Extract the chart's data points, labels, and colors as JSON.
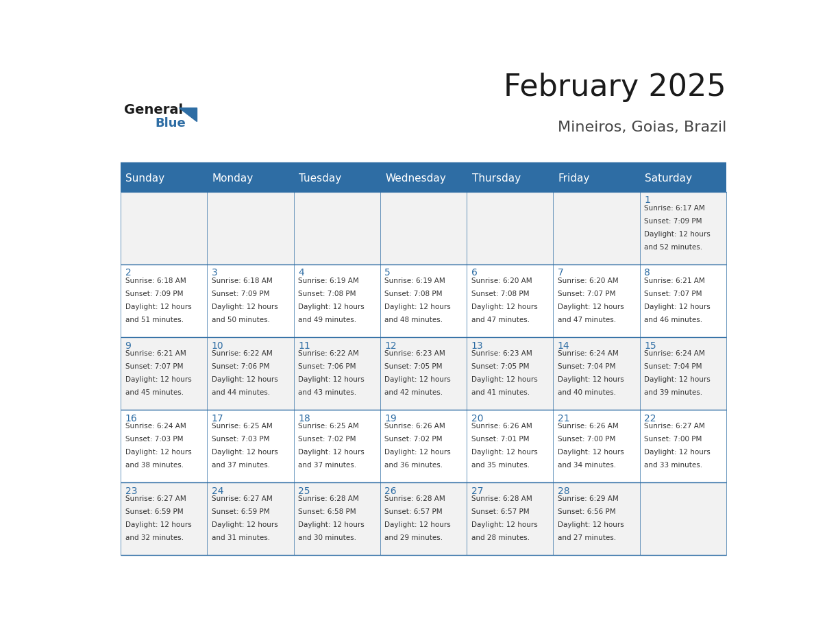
{
  "title": "February 2025",
  "subtitle": "Mineiros, Goias, Brazil",
  "days_of_week": [
    "Sunday",
    "Monday",
    "Tuesday",
    "Wednesday",
    "Thursday",
    "Friday",
    "Saturday"
  ],
  "header_bg": "#2E6DA4",
  "header_text_color": "#FFFFFF",
  "cell_bg_light": "#F2F2F2",
  "cell_bg_white": "#FFFFFF",
  "border_color": "#2E6DA4",
  "day_number_color": "#2E6DA4",
  "cell_text_color": "#333333",
  "title_color": "#1a1a1a",
  "subtitle_color": "#444444",
  "logo_general_color": "#1a1a1a",
  "logo_blue_color": "#2E6DA4",
  "week_rows": [
    {
      "days": [
        {
          "col": 6,
          "day": 1,
          "lines": [
            "Sunrise: 6:17 AM",
            "Sunset: 7:09 PM",
            "Daylight: 12 hours",
            "and 52 minutes."
          ]
        }
      ]
    },
    {
      "days": [
        {
          "col": 0,
          "day": 2,
          "lines": [
            "Sunrise: 6:18 AM",
            "Sunset: 7:09 PM",
            "Daylight: 12 hours",
            "and 51 minutes."
          ]
        },
        {
          "col": 1,
          "day": 3,
          "lines": [
            "Sunrise: 6:18 AM",
            "Sunset: 7:09 PM",
            "Daylight: 12 hours",
            "and 50 minutes."
          ]
        },
        {
          "col": 2,
          "day": 4,
          "lines": [
            "Sunrise: 6:19 AM",
            "Sunset: 7:08 PM",
            "Daylight: 12 hours",
            "and 49 minutes."
          ]
        },
        {
          "col": 3,
          "day": 5,
          "lines": [
            "Sunrise: 6:19 AM",
            "Sunset: 7:08 PM",
            "Daylight: 12 hours",
            "and 48 minutes."
          ]
        },
        {
          "col": 4,
          "day": 6,
          "lines": [
            "Sunrise: 6:20 AM",
            "Sunset: 7:08 PM",
            "Daylight: 12 hours",
            "and 47 minutes."
          ]
        },
        {
          "col": 5,
          "day": 7,
          "lines": [
            "Sunrise: 6:20 AM",
            "Sunset: 7:07 PM",
            "Daylight: 12 hours",
            "and 47 minutes."
          ]
        },
        {
          "col": 6,
          "day": 8,
          "lines": [
            "Sunrise: 6:21 AM",
            "Sunset: 7:07 PM",
            "Daylight: 12 hours",
            "and 46 minutes."
          ]
        }
      ]
    },
    {
      "days": [
        {
          "col": 0,
          "day": 9,
          "lines": [
            "Sunrise: 6:21 AM",
            "Sunset: 7:07 PM",
            "Daylight: 12 hours",
            "and 45 minutes."
          ]
        },
        {
          "col": 1,
          "day": 10,
          "lines": [
            "Sunrise: 6:22 AM",
            "Sunset: 7:06 PM",
            "Daylight: 12 hours",
            "and 44 minutes."
          ]
        },
        {
          "col": 2,
          "day": 11,
          "lines": [
            "Sunrise: 6:22 AM",
            "Sunset: 7:06 PM",
            "Daylight: 12 hours",
            "and 43 minutes."
          ]
        },
        {
          "col": 3,
          "day": 12,
          "lines": [
            "Sunrise: 6:23 AM",
            "Sunset: 7:05 PM",
            "Daylight: 12 hours",
            "and 42 minutes."
          ]
        },
        {
          "col": 4,
          "day": 13,
          "lines": [
            "Sunrise: 6:23 AM",
            "Sunset: 7:05 PM",
            "Daylight: 12 hours",
            "and 41 minutes."
          ]
        },
        {
          "col": 5,
          "day": 14,
          "lines": [
            "Sunrise: 6:24 AM",
            "Sunset: 7:04 PM",
            "Daylight: 12 hours",
            "and 40 minutes."
          ]
        },
        {
          "col": 6,
          "day": 15,
          "lines": [
            "Sunrise: 6:24 AM",
            "Sunset: 7:04 PM",
            "Daylight: 12 hours",
            "and 39 minutes."
          ]
        }
      ]
    },
    {
      "days": [
        {
          "col": 0,
          "day": 16,
          "lines": [
            "Sunrise: 6:24 AM",
            "Sunset: 7:03 PM",
            "Daylight: 12 hours",
            "and 38 minutes."
          ]
        },
        {
          "col": 1,
          "day": 17,
          "lines": [
            "Sunrise: 6:25 AM",
            "Sunset: 7:03 PM",
            "Daylight: 12 hours",
            "and 37 minutes."
          ]
        },
        {
          "col": 2,
          "day": 18,
          "lines": [
            "Sunrise: 6:25 AM",
            "Sunset: 7:02 PM",
            "Daylight: 12 hours",
            "and 37 minutes."
          ]
        },
        {
          "col": 3,
          "day": 19,
          "lines": [
            "Sunrise: 6:26 AM",
            "Sunset: 7:02 PM",
            "Daylight: 12 hours",
            "and 36 minutes."
          ]
        },
        {
          "col": 4,
          "day": 20,
          "lines": [
            "Sunrise: 6:26 AM",
            "Sunset: 7:01 PM",
            "Daylight: 12 hours",
            "and 35 minutes."
          ]
        },
        {
          "col": 5,
          "day": 21,
          "lines": [
            "Sunrise: 6:26 AM",
            "Sunset: 7:00 PM",
            "Daylight: 12 hours",
            "and 34 minutes."
          ]
        },
        {
          "col": 6,
          "day": 22,
          "lines": [
            "Sunrise: 6:27 AM",
            "Sunset: 7:00 PM",
            "Daylight: 12 hours",
            "and 33 minutes."
          ]
        }
      ]
    },
    {
      "days": [
        {
          "col": 0,
          "day": 23,
          "lines": [
            "Sunrise: 6:27 AM",
            "Sunset: 6:59 PM",
            "Daylight: 12 hours",
            "and 32 minutes."
          ]
        },
        {
          "col": 1,
          "day": 24,
          "lines": [
            "Sunrise: 6:27 AM",
            "Sunset: 6:59 PM",
            "Daylight: 12 hours",
            "and 31 minutes."
          ]
        },
        {
          "col": 2,
          "day": 25,
          "lines": [
            "Sunrise: 6:28 AM",
            "Sunset: 6:58 PM",
            "Daylight: 12 hours",
            "and 30 minutes."
          ]
        },
        {
          "col": 3,
          "day": 26,
          "lines": [
            "Sunrise: 6:28 AM",
            "Sunset: 6:57 PM",
            "Daylight: 12 hours",
            "and 29 minutes."
          ]
        },
        {
          "col": 4,
          "day": 27,
          "lines": [
            "Sunrise: 6:28 AM",
            "Sunset: 6:57 PM",
            "Daylight: 12 hours",
            "and 28 minutes."
          ]
        },
        {
          "col": 5,
          "day": 28,
          "lines": [
            "Sunrise: 6:29 AM",
            "Sunset: 6:56 PM",
            "Daylight: 12 hours",
            "and 27 minutes."
          ]
        }
      ]
    }
  ]
}
